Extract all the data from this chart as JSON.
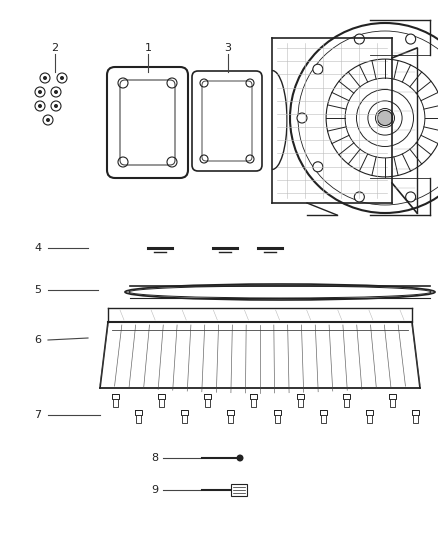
{
  "bg_color": "#ffffff",
  "lc": "#444444",
  "dc": "#222222",
  "gray": "#888888",
  "lgray": "#bbbbbb",
  "fig_width": 4.38,
  "fig_height": 5.33,
  "dpi": 100,
  "xlim": [
    0,
    438
  ],
  "ylim": [
    0,
    533
  ]
}
